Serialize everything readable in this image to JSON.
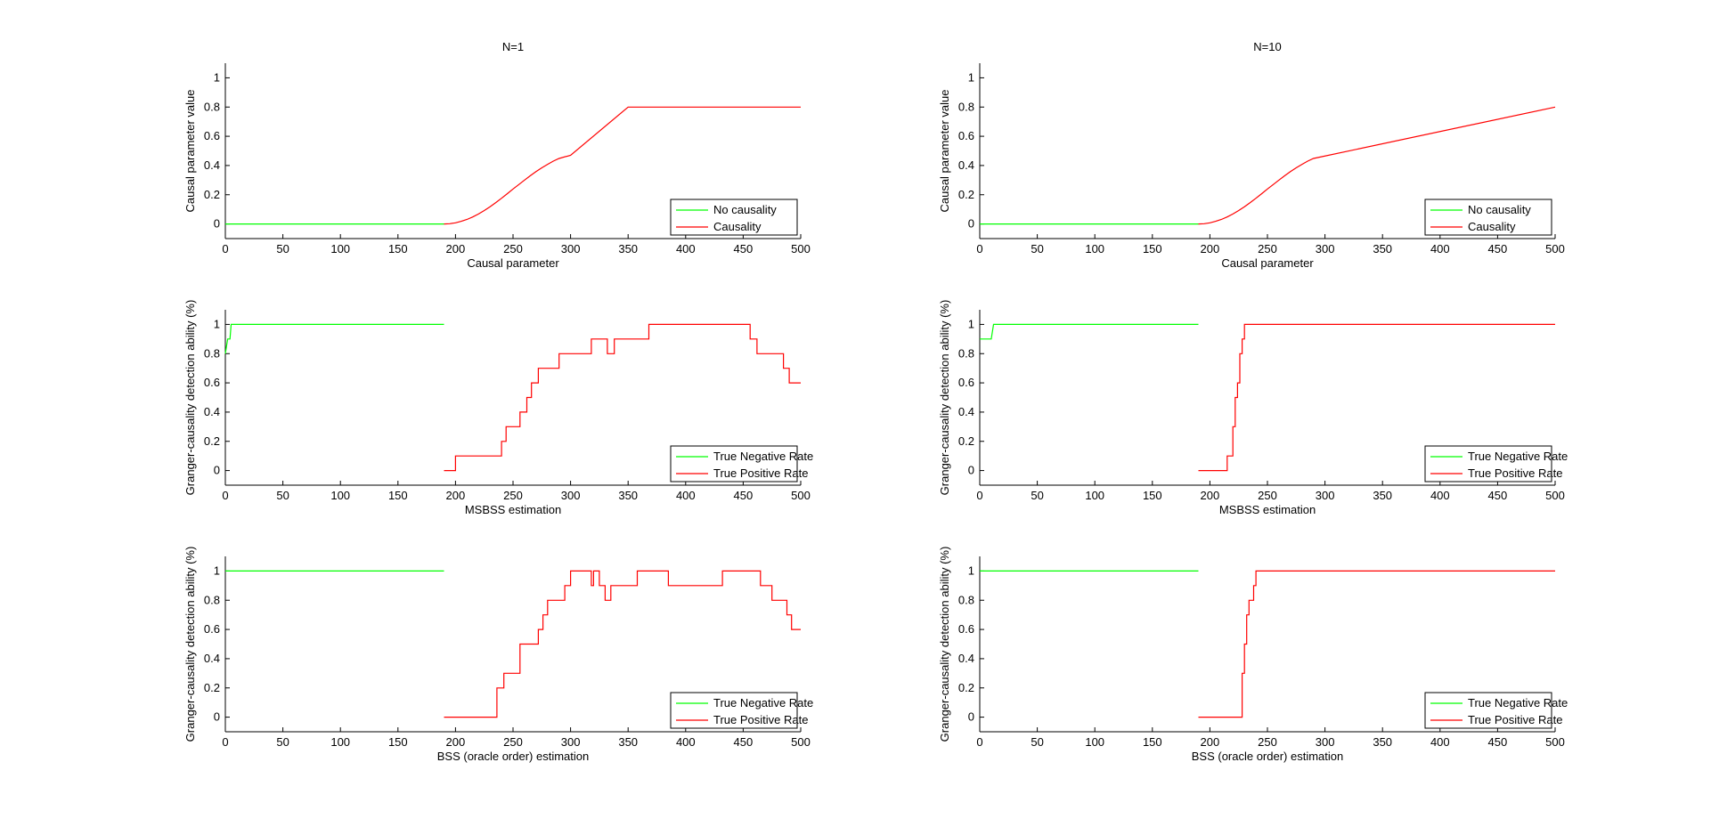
{
  "figure": {
    "colors": {
      "green": "#00ff00",
      "red": "#ff0000",
      "axis": "#000000",
      "background": "#ffffff"
    }
  },
  "chart_data": [
    {
      "id": "n1-causal",
      "type": "line",
      "title": "N=1",
      "xlabel": "Causal parameter",
      "ylabel": "Causal parameter value",
      "xlim": [
        0,
        500
      ],
      "ylim": [
        -0.1,
        1.1
      ],
      "xticks": [
        "0",
        "50",
        "100",
        "150",
        "200",
        "250",
        "300",
        "350",
        "400",
        "450",
        "500"
      ],
      "yticks": [
        "0",
        "0.2",
        "0.4",
        "0.6",
        "0.8",
        "1"
      ],
      "legend": "bottom-right",
      "series": [
        {
          "name": "No causality",
          "color": "#00ff00",
          "step": false,
          "x": [
            0,
            190
          ],
          "y": [
            0,
            0
          ]
        },
        {
          "name": "Causality",
          "color": "#ff0000",
          "step": false,
          "x": [
            190,
            195,
            200,
            205,
            210,
            215,
            220,
            225,
            230,
            235,
            240,
            245,
            250,
            255,
            260,
            265,
            270,
            275,
            280,
            285,
            290,
            300,
            350,
            400,
            450,
            500
          ],
          "y": [
            0,
            0.002,
            0.008,
            0.018,
            0.031,
            0.048,
            0.068,
            0.092,
            0.118,
            0.146,
            0.176,
            0.207,
            0.239,
            0.27,
            0.3,
            0.33,
            0.358,
            0.384,
            0.408,
            0.43,
            0.448,
            0.47,
            0.8,
            0.8,
            0.8,
            0.8
          ]
        }
      ]
    },
    {
      "id": "n10-causal",
      "type": "line",
      "title": "N=10",
      "xlabel": "Causal parameter",
      "ylabel": "Causal parameter value",
      "xlim": [
        0,
        500
      ],
      "ylim": [
        -0.1,
        1.1
      ],
      "xticks": [
        "0",
        "50",
        "100",
        "150",
        "200",
        "250",
        "300",
        "350",
        "400",
        "450",
        "500"
      ],
      "yticks": [
        "0",
        "0.2",
        "0.4",
        "0.6",
        "0.8",
        "1"
      ],
      "legend": "bottom-right",
      "series": [
        {
          "name": "No causality",
          "color": "#00ff00",
          "step": false,
          "x": [
            0,
            190
          ],
          "y": [
            0,
            0
          ]
        },
        {
          "name": "Causality",
          "color": "#ff0000",
          "step": false,
          "x": [
            190,
            195,
            200,
            205,
            210,
            215,
            220,
            225,
            230,
            235,
            240,
            245,
            250,
            255,
            260,
            265,
            270,
            275,
            280,
            285,
            290,
            500
          ],
          "y": [
            0,
            0.002,
            0.008,
            0.018,
            0.031,
            0.048,
            0.068,
            0.092,
            0.118,
            0.146,
            0.176,
            0.207,
            0.239,
            0.27,
            0.3,
            0.33,
            0.358,
            0.384,
            0.408,
            0.43,
            0.448,
            0.8
          ]
        }
      ]
    },
    {
      "id": "n1-msbss",
      "type": "line",
      "title": "",
      "xlabel": "MSBSS estimation",
      "ylabel": "Granger-causality detection ability (%)",
      "xlim": [
        0,
        500
      ],
      "ylim": [
        -0.1,
        1.1
      ],
      "xticks": [
        "0",
        "50",
        "100",
        "150",
        "200",
        "250",
        "300",
        "350",
        "400",
        "450",
        "500"
      ],
      "yticks": [
        "0",
        "0.2",
        "0.4",
        "0.6",
        "0.8",
        "1"
      ],
      "legend": "bottom-right",
      "series": [
        {
          "name": "True Negative Rate",
          "color": "#00ff00",
          "step": false,
          "x": [
            0,
            2,
            4,
            5,
            190
          ],
          "y": [
            0.8,
            0.9,
            0.9,
            1,
            1
          ]
        },
        {
          "name": "True Positive Rate",
          "color": "#ff0000",
          "step": true,
          "x": [
            190,
            200,
            240,
            244,
            248,
            256,
            262,
            266,
            272,
            280,
            290,
            300,
            318,
            332,
            338,
            368,
            450,
            456,
            462,
            485,
            490,
            495,
            500
          ],
          "y": [
            0,
            0.1,
            0.2,
            0.3,
            0.3,
            0.4,
            0.5,
            0.6,
            0.7,
            0.7,
            0.8,
            0.8,
            0.9,
            0.8,
            0.9,
            1,
            1,
            0.9,
            0.8,
            0.7,
            0.6,
            0.6,
            0.6
          ]
        }
      ]
    },
    {
      "id": "n10-msbss",
      "type": "line",
      "title": "",
      "xlabel": "MSBSS estimation",
      "ylabel": "Granger-causality detection ability (%)",
      "xlim": [
        0,
        500
      ],
      "ylim": [
        -0.1,
        1.1
      ],
      "xticks": [
        "0",
        "50",
        "100",
        "150",
        "200",
        "250",
        "300",
        "350",
        "400",
        "450",
        "500"
      ],
      "yticks": [
        "0",
        "0.2",
        "0.4",
        "0.6",
        "0.8",
        "1"
      ],
      "legend": "bottom-right",
      "series": [
        {
          "name": "True Negative Rate",
          "color": "#00ff00",
          "step": false,
          "x": [
            0,
            10,
            12,
            190
          ],
          "y": [
            0.9,
            0.9,
            1,
            1
          ]
        },
        {
          "name": "True Positive Rate",
          "color": "#ff0000",
          "step": true,
          "x": [
            190,
            215,
            220,
            222,
            224,
            226,
            228,
            230,
            232,
            500
          ],
          "y": [
            0,
            0.1,
            0.3,
            0.5,
            0.6,
            0.8,
            0.9,
            1,
            1,
            1
          ]
        }
      ]
    },
    {
      "id": "n1-bss",
      "type": "line",
      "title": "",
      "xlabel": "BSS (oracle order) estimation",
      "ylabel": "Granger-causality detection ability (%)",
      "xlim": [
        0,
        500
      ],
      "ylim": [
        -0.1,
        1.1
      ],
      "xticks": [
        "0",
        "50",
        "100",
        "150",
        "200",
        "250",
        "300",
        "350",
        "400",
        "450",
        "500"
      ],
      "yticks": [
        "0",
        "0.2",
        "0.4",
        "0.6",
        "0.8",
        "1"
      ],
      "legend": "bottom-right",
      "series": [
        {
          "name": "True Negative Rate",
          "color": "#00ff00",
          "step": false,
          "x": [
            0,
            190
          ],
          "y": [
            1,
            1
          ]
        },
        {
          "name": "True Positive Rate",
          "color": "#ff0000",
          "step": true,
          "x": [
            190,
            236,
            242,
            248,
            256,
            272,
            276,
            280,
            295,
            300,
            318,
            320,
            325,
            330,
            335,
            358,
            385,
            432,
            436,
            465,
            475,
            488,
            492,
            496,
            500
          ],
          "y": [
            0,
            0.2,
            0.3,
            0.3,
            0.5,
            0.6,
            0.7,
            0.8,
            0.9,
            1,
            0.9,
            1,
            0.9,
            0.8,
            0.9,
            1,
            0.9,
            1,
            1,
            0.9,
            0.8,
            0.7,
            0.6,
            0.6,
            0.6
          ]
        }
      ]
    },
    {
      "id": "n10-bss",
      "type": "line",
      "title": "",
      "xlabel": "BSS (oracle order) estimation",
      "ylabel": "Granger-causality detection ability (%)",
      "xlim": [
        0,
        500
      ],
      "ylim": [
        -0.1,
        1.1
      ],
      "xticks": [
        "0",
        "50",
        "100",
        "150",
        "200",
        "250",
        "300",
        "350",
        "400",
        "450",
        "500"
      ],
      "yticks": [
        "0",
        "0.2",
        "0.4",
        "0.6",
        "0.8",
        "1"
      ],
      "legend": "bottom-right",
      "series": [
        {
          "name": "True Negative Rate",
          "color": "#00ff00",
          "step": false,
          "x": [
            0,
            190
          ],
          "y": [
            1,
            1
          ]
        },
        {
          "name": "True Positive Rate",
          "color": "#ff0000",
          "step": true,
          "x": [
            190,
            228,
            230,
            232,
            234,
            236,
            238,
            240,
            242,
            500
          ],
          "y": [
            0,
            0.3,
            0.5,
            0.7,
            0.8,
            0.8,
            0.9,
            1,
            1,
            1
          ]
        }
      ]
    }
  ]
}
